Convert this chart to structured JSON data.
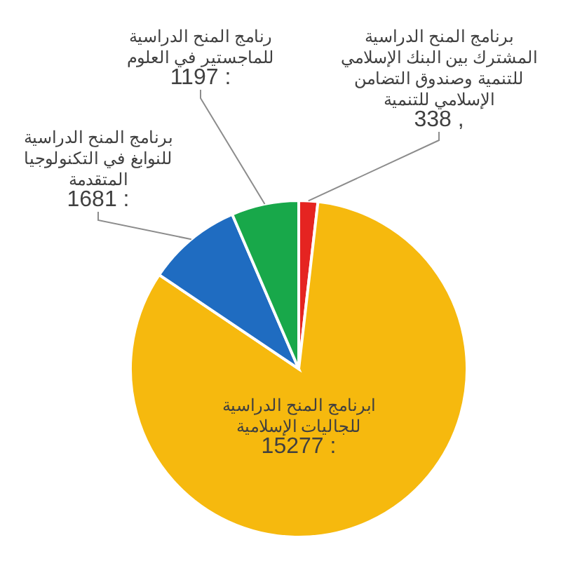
{
  "chart_data": {
    "type": "pie",
    "categories": [
      "برنامج المنح الدراسية المشترك بين البنك الإسلامي للتنمية وصندوق التضامن الإسلامي للتنمية",
      "ابرنامج المنح الدراسية للجاليات الإسلامية",
      "برنامج المنح الدراسية للنوابغ في التكنولوجيا المتقدمة",
      "رنامج المنح الدراسية للماجستير في العلوم"
    ],
    "values": [
      338,
      15277,
      1681,
      1197
    ],
    "value_labels": [
      ", 338",
      ": 15277",
      ": 1681",
      ": 1197"
    ],
    "colors": [
      "#e52421",
      "#f6b90e",
      "#1f6cc1",
      "#18a84a"
    ]
  }
}
